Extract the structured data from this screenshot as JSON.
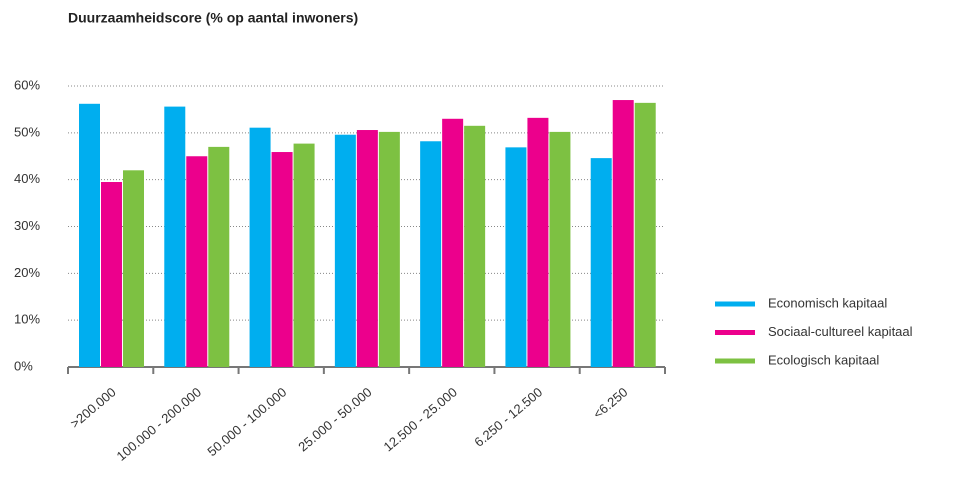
{
  "chart_data": {
    "type": "bar",
    "title": "Duurzaamheidscore (% op aantal inwoners)",
    "categories": [
      ">200.000",
      "100.000 - 200.000",
      "50.000 - 100.000",
      "25.000 - 50.000",
      "12.500 - 25.000",
      "6.250 - 12.500",
      "<6.250"
    ],
    "series": [
      {
        "name": "Economisch kapitaal",
        "color": "#00aeef",
        "values": [
          56.2,
          55.6,
          51.1,
          49.6,
          48.2,
          46.9,
          44.6
        ]
      },
      {
        "name": "Sociaal-cultureel kapitaal",
        "color": "#ec008c",
        "values": [
          39.5,
          45.0,
          45.9,
          50.6,
          53.0,
          53.2,
          57.0
        ]
      },
      {
        "name": "Ecologisch kapitaal",
        "color": "#7dc142",
        "values": [
          42.0,
          47.0,
          47.7,
          50.2,
          51.5,
          50.2,
          56.4
        ]
      }
    ],
    "ylim": [
      0,
      60
    ],
    "yticks": [
      {
        "value": 0,
        "label": "0%"
      },
      {
        "value": 10,
        "label": "10%"
      },
      {
        "value": 20,
        "label": "20%"
      },
      {
        "value": 30,
        "label": "30%"
      },
      {
        "value": 40,
        "label": "40%"
      },
      {
        "value": 50,
        "label": "50%"
      },
      {
        "value": 60,
        "label": "60%"
      }
    ],
    "grid": true,
    "legend": "right"
  }
}
